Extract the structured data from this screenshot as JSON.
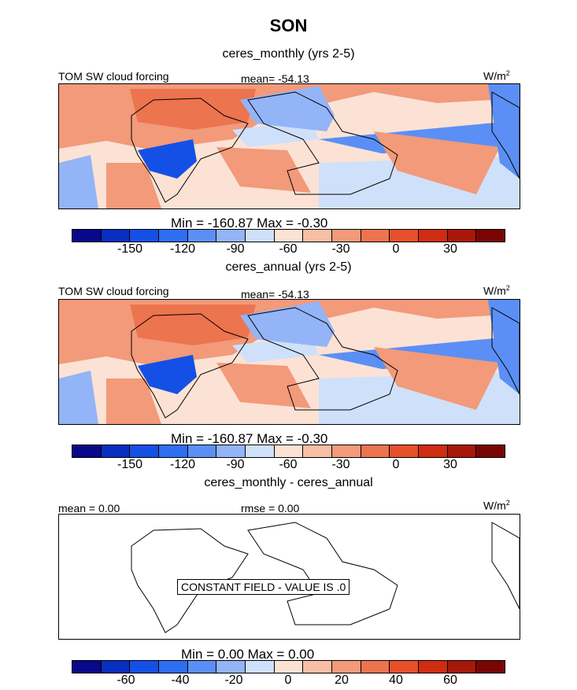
{
  "season": "SON",
  "panels": [
    {
      "subtitle": "ceres_monthly (yrs 2-5)",
      "left_label": "TOM SW cloud forcing",
      "center_label": "mean= -54.13",
      "units": "W/m",
      "units_sup": "2",
      "minmax": "Min = -160.87 Max =  -0.30",
      "colorbar_ticks": [
        "-150",
        "-120",
        "-90",
        "-60",
        "-30",
        "0",
        "30"
      ]
    },
    {
      "subtitle": "ceres_annual (yrs 2-5)",
      "left_label": "TOM SW cloud forcing",
      "center_label": "mean= -54.13",
      "units": "W/m",
      "units_sup": "2",
      "minmax": "Min = -160.87 Max =  -0.30",
      "colorbar_ticks": [
        "-150",
        "-120",
        "-90",
        "-60",
        "-30",
        "0",
        "30"
      ]
    },
    {
      "subtitle": "ceres_monthly - ceres_annual",
      "left_label": "mean =   0.00",
      "center_label": "rmse =   0.00",
      "units": "W/m",
      "units_sup": "2",
      "constant_note": "CONSTANT FIELD - VALUE IS .0",
      "minmax": "Min =    0.00 Max =    0.00",
      "colorbar_ticks": [
        "-60",
        "-40",
        "-20",
        "0",
        "20",
        "40",
        "60"
      ]
    }
  ],
  "colors": {
    "palette": [
      "#08088a",
      "#0a2ec0",
      "#1450e6",
      "#2e6ef0",
      "#5b8ff5",
      "#93b4f7",
      "#cfe0fa",
      "#fbe2d4",
      "#f7bfa5",
      "#f29a7a",
      "#ec744f",
      "#e6502b",
      "#d02c12",
      "#a8180a",
      "#7a0505"
    ]
  }
}
